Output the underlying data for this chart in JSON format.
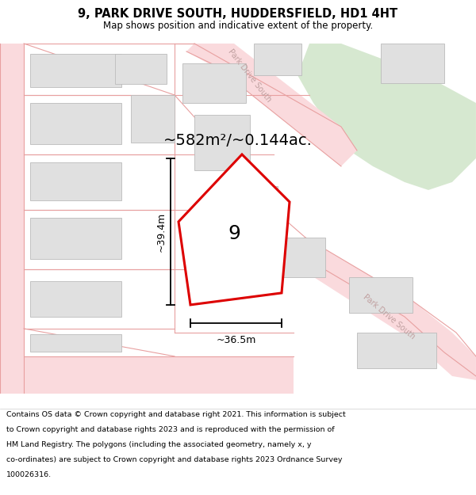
{
  "title": "9, PARK DRIVE SOUTH, HUDDERSFIELD, HD1 4HT",
  "subtitle": "Map shows position and indicative extent of the property.",
  "area_text": "~582m²/~0.144ac.",
  "dim_width": "~36.5m",
  "dim_height": "~39.4m",
  "property_number": "9",
  "bg_color": "#ffffff",
  "road_fill": "#fadadd",
  "road_line": "#e8a0a0",
  "prop_fill": "#ffffff",
  "prop_edge": "#dd0000",
  "bldg_fill": "#e0e0e0",
  "bldg_edge": "#bbbbbb",
  "green_fill": "#d6e8d0",
  "road_label_color": "#c0a0a0",
  "footer_text": "Contains OS data © Crown copyright and database right 2021. This information is subject to Crown copyright and database rights 2023 and is reproduced with the permission of HM Land Registry. The polygons (including the associated geometry, namely x, y co-ordinates) are subject to Crown copyright and database rights 2023 Ordnance Survey 100026316.",
  "title_fontsize": 10.5,
  "subtitle_fontsize": 8.5,
  "area_fontsize": 14,
  "dim_fontsize": 9,
  "prop_label_fontsize": 18,
  "footer_fontsize": 6.8
}
